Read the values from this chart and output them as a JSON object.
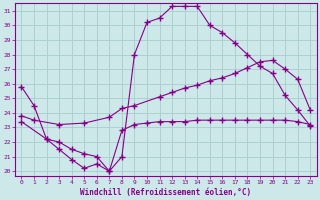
{
  "xlabel": "Windchill (Refroidissement éolien,°C)",
  "bg_color": "#cce8e8",
  "line_color": "#880088",
  "grid_color": "#aacccc",
  "xlim": [
    -0.5,
    23.5
  ],
  "ylim": [
    19.7,
    31.5
  ],
  "xticks": [
    0,
    1,
    2,
    3,
    4,
    5,
    6,
    7,
    8,
    9,
    10,
    11,
    12,
    13,
    14,
    15,
    16,
    17,
    18,
    19,
    20,
    21,
    22,
    23
  ],
  "yticks": [
    20,
    21,
    22,
    23,
    24,
    25,
    26,
    27,
    28,
    29,
    30,
    31
  ],
  "line1_x": [
    0,
    1,
    2,
    3,
    4,
    5,
    6,
    7,
    8,
    9,
    10,
    11,
    12,
    13,
    14,
    15,
    16,
    17,
    18,
    19,
    20,
    21,
    22,
    23
  ],
  "line1_y": [
    25.8,
    24.5,
    22.2,
    21.5,
    20.8,
    20.2,
    20.5,
    20.0,
    21.0,
    28.0,
    30.2,
    30.5,
    31.3,
    31.3,
    31.3,
    30.0,
    29.5,
    28.8,
    28.0,
    27.2,
    26.7,
    25.2,
    24.2,
    23.1
  ],
  "line2_x": [
    0,
    1,
    3,
    5,
    7,
    8,
    9,
    11,
    12,
    13,
    14,
    15,
    16,
    17,
    18,
    19,
    20,
    21,
    22,
    23
  ],
  "line2_y": [
    23.8,
    23.5,
    23.2,
    23.3,
    23.7,
    24.3,
    24.5,
    25.1,
    25.4,
    25.7,
    25.9,
    26.2,
    26.4,
    26.7,
    27.1,
    27.5,
    27.6,
    27.0,
    26.3,
    24.2
  ],
  "line3_x": [
    0,
    2,
    3,
    4,
    5,
    6,
    7,
    8,
    9,
    10,
    11,
    12,
    13,
    14,
    15,
    16,
    17,
    18,
    19,
    20,
    21,
    22,
    23
  ],
  "line3_y": [
    23.4,
    22.2,
    22.0,
    21.5,
    21.2,
    21.0,
    20.0,
    22.8,
    23.2,
    23.3,
    23.4,
    23.4,
    23.4,
    23.5,
    23.5,
    23.5,
    23.5,
    23.5,
    23.5,
    23.5,
    23.5,
    23.4,
    23.2
  ]
}
